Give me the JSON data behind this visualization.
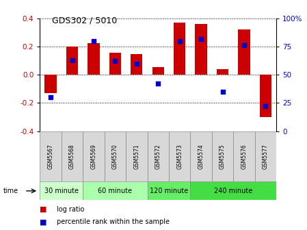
{
  "title": "GDS302 / 5010",
  "samples": [
    "GSM5567",
    "GSM5568",
    "GSM5569",
    "GSM5570",
    "GSM5571",
    "GSM5572",
    "GSM5573",
    "GSM5574",
    "GSM5575",
    "GSM5576",
    "GSM5577"
  ],
  "log_ratio": [
    -0.13,
    0.2,
    0.225,
    0.155,
    0.145,
    0.055,
    0.37,
    0.36,
    0.04,
    0.32,
    -0.3
  ],
  "percentile": [
    30,
    63,
    80,
    62,
    60,
    42,
    80,
    82,
    35,
    76,
    22
  ],
  "groups": [
    {
      "label": "30 minute",
      "start": 0,
      "end": 2,
      "color": "#ccffcc"
    },
    {
      "label": "60 minute",
      "start": 2,
      "end": 5,
      "color": "#aaffaa"
    },
    {
      "label": "120 minute",
      "start": 5,
      "end": 7,
      "color": "#66ee66"
    },
    {
      "label": "240 minute",
      "start": 7,
      "end": 11,
      "color": "#44dd44"
    }
  ],
  "bar_color": "#cc0000",
  "dot_color": "#0000cc",
  "ylim": [
    -0.4,
    0.4
  ],
  "yticks": [
    -0.4,
    -0.2,
    0.0,
    0.2,
    0.4
  ],
  "right_ylim": [
    0,
    100
  ],
  "right_yticks": [
    0,
    25,
    50,
    75,
    100
  ],
  "right_yticklabels": [
    "0",
    "25",
    "50",
    "75",
    "100%"
  ],
  "bar_width": 0.55,
  "dot_size": 16,
  "background_color": "#ffffff",
  "tick_label_color_left": "#cc0000",
  "tick_label_color_right": "#0000cc",
  "cell_bg": "#d8d8d8",
  "cell_border": "#888888"
}
